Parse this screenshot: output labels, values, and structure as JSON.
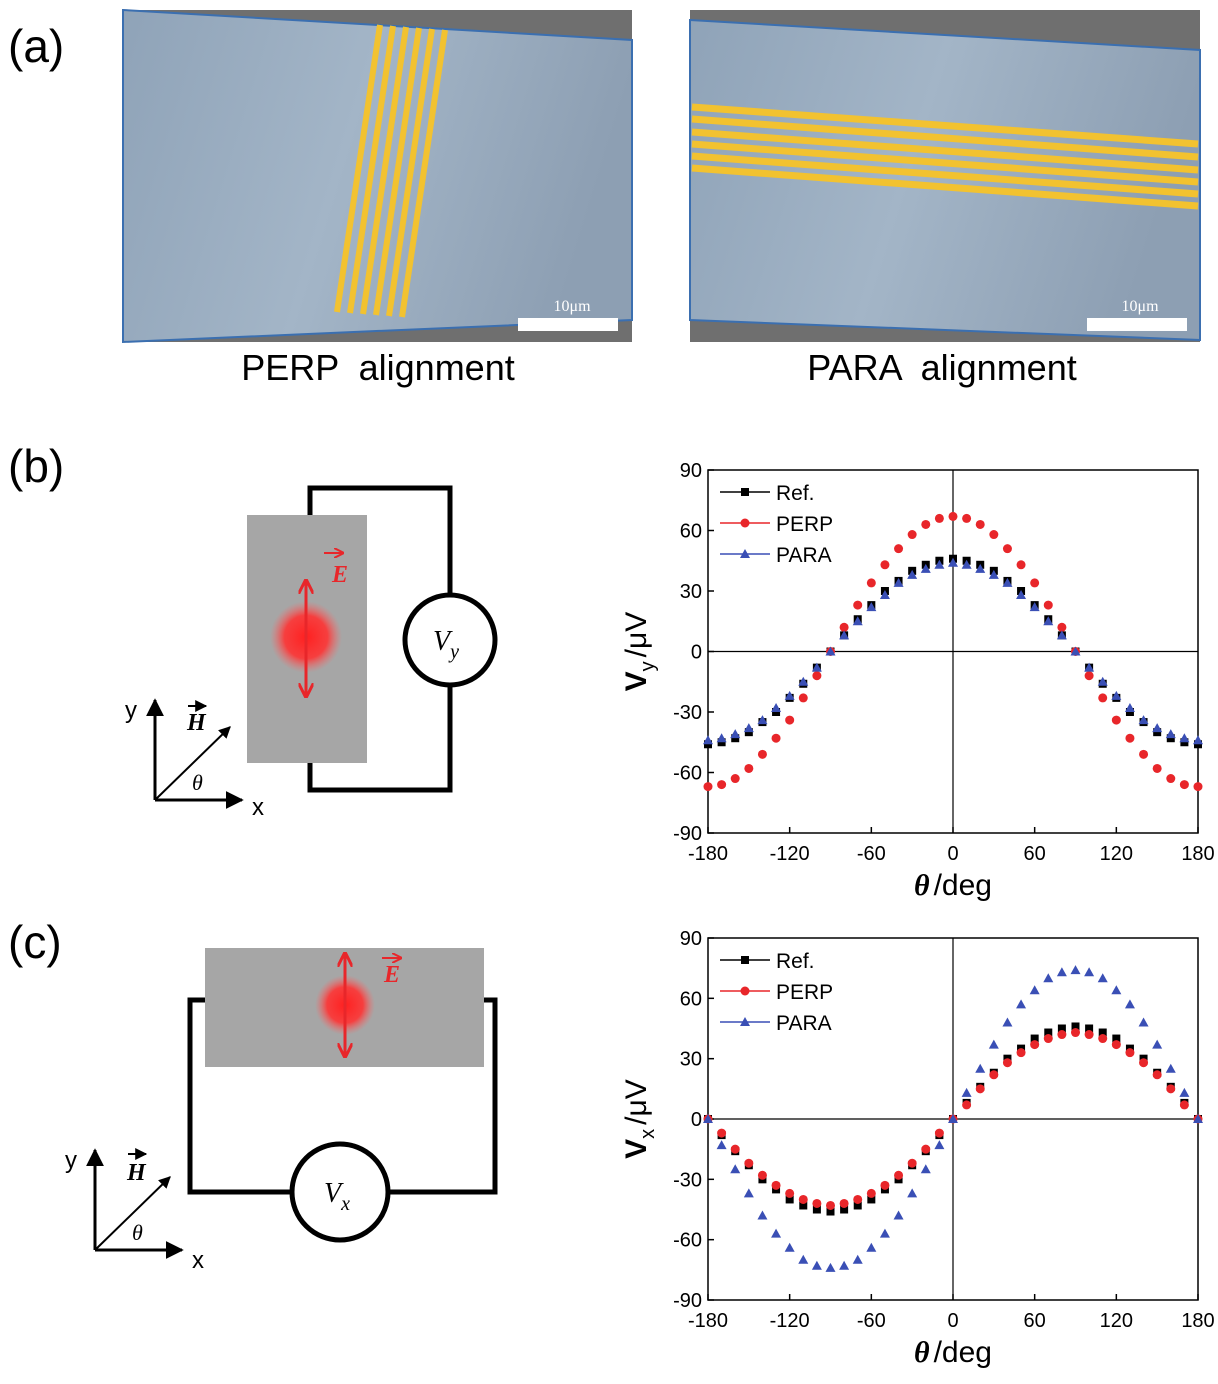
{
  "panel_labels": [
    "(a)",
    "(b)",
    "(c)"
  ],
  "images": [
    {
      "scale_bar": "10μm",
      "caption": "PERP  alignment"
    },
    {
      "scale_bar": "10μm",
      "caption": "PARA  alignment"
    }
  ],
  "diagrams": [
    {
      "field": "E",
      "meter": "V",
      "meter_sub": "y",
      "axis_y": "y",
      "axis_x": "x",
      "vector": "H",
      "angle": "θ"
    },
    {
      "field": "E",
      "meter": "V",
      "meter_sub": "x",
      "axis_y": "y",
      "axis_x": "x",
      "vector": "H",
      "angle": "θ"
    }
  ],
  "chart_data": [
    {
      "type": "scatter",
      "ylabel": "V",
      "ylabel_sub": "y",
      "ylabel_unit": "/μV",
      "xlabel": "θ",
      "xlabel_unit": "/deg",
      "xlim": [
        -180,
        180
      ],
      "xticks": [
        -180,
        -120,
        -60,
        0,
        60,
        120,
        180
      ],
      "ylim": [
        -90,
        90
      ],
      "yticks": [
        -90,
        -60,
        -30,
        0,
        30,
        60,
        90
      ],
      "x": [
        -180,
        -170,
        -160,
        -150,
        -140,
        -130,
        -120,
        -110,
        -100,
        -90,
        -80,
        -70,
        -60,
        -50,
        -40,
        -30,
        -20,
        -10,
        0,
        10,
        20,
        30,
        40,
        50,
        60,
        70,
        80,
        90,
        100,
        110,
        120,
        130,
        140,
        150,
        160,
        170,
        180
      ],
      "series": [
        {
          "name": "Ref.",
          "color": "#000000",
          "marker": "square",
          "values": [
            -46,
            -45,
            -43,
            -40,
            -35,
            -30,
            -23,
            -16,
            -8,
            0,
            8,
            16,
            23,
            30,
            35,
            40,
            43,
            45,
            46,
            45,
            43,
            40,
            35,
            30,
            23,
            16,
            8,
            0,
            -8,
            -16,
            -23,
            -30,
            -35,
            -40,
            -43,
            -45,
            -46
          ]
        },
        {
          "name": "PERP",
          "color": "#e8262a",
          "marker": "circle",
          "values": [
            -67,
            -66,
            -63,
            -58,
            -51,
            -43,
            -34,
            -23,
            -12,
            0,
            12,
            23,
            34,
            43,
            51,
            58,
            63,
            66,
            67,
            66,
            63,
            58,
            51,
            43,
            34,
            23,
            12,
            0,
            -12,
            -23,
            -34,
            -43,
            -51,
            -58,
            -63,
            -66,
            -67
          ]
        },
        {
          "name": "PARA",
          "color": "#3a4fb5",
          "marker": "triangle",
          "values": [
            -44,
            -43,
            -41,
            -38,
            -34,
            -28,
            -22,
            -15,
            -8,
            0,
            8,
            15,
            22,
            28,
            34,
            38,
            41,
            43,
            44,
            43,
            41,
            38,
            34,
            28,
            22,
            15,
            8,
            0,
            -8,
            -15,
            -22,
            -28,
            -34,
            -38,
            -41,
            -43,
            -44
          ]
        }
      ]
    },
    {
      "type": "scatter",
      "ylabel": "V",
      "ylabel_sub": "x",
      "ylabel_unit": "/μV",
      "xlabel": "θ",
      "xlabel_unit": "/deg",
      "xlim": [
        -180,
        180
      ],
      "xticks": [
        -180,
        -120,
        -60,
        0,
        60,
        120,
        180
      ],
      "ylim": [
        -90,
        90
      ],
      "yticks": [
        -90,
        -60,
        -30,
        0,
        30,
        60,
        90
      ],
      "x": [
        -180,
        -170,
        -160,
        -150,
        -140,
        -130,
        -120,
        -110,
        -100,
        -90,
        -80,
        -70,
        -60,
        -50,
        -40,
        -30,
        -20,
        -10,
        0,
        10,
        20,
        30,
        40,
        50,
        60,
        70,
        80,
        90,
        100,
        110,
        120,
        130,
        140,
        150,
        160,
        170,
        180
      ],
      "series": [
        {
          "name": "Ref.",
          "color": "#000000",
          "marker": "square",
          "values": [
            0,
            -8,
            -16,
            -23,
            -30,
            -35,
            -40,
            -43,
            -45,
            -46,
            -45,
            -43,
            -40,
            -35,
            -30,
            -23,
            -16,
            -8,
            0,
            8,
            16,
            23,
            30,
            35,
            40,
            43,
            45,
            46,
            45,
            43,
            40,
            35,
            30,
            23,
            16,
            8,
            0
          ]
        },
        {
          "name": "PERP",
          "color": "#e8262a",
          "marker": "circle",
          "values": [
            0,
            -7,
            -15,
            -22,
            -28,
            -33,
            -37,
            -40,
            -42,
            -43,
            -42,
            -40,
            -37,
            -33,
            -28,
            -22,
            -15,
            -7,
            0,
            7,
            15,
            22,
            28,
            33,
            37,
            40,
            42,
            43,
            42,
            40,
            37,
            33,
            28,
            22,
            15,
            7,
            0
          ]
        },
        {
          "name": "PARA",
          "color": "#3a4fb5",
          "marker": "triangle",
          "values": [
            0,
            -13,
            -25,
            -37,
            -48,
            -57,
            -64,
            -70,
            -73,
            -74,
            -73,
            -70,
            -64,
            -57,
            -48,
            -37,
            -25,
            -13,
            0,
            13,
            25,
            37,
            48,
            57,
            64,
            70,
            73,
            74,
            73,
            70,
            64,
            57,
            48,
            37,
            25,
            13,
            0
          ]
        }
      ]
    }
  ]
}
